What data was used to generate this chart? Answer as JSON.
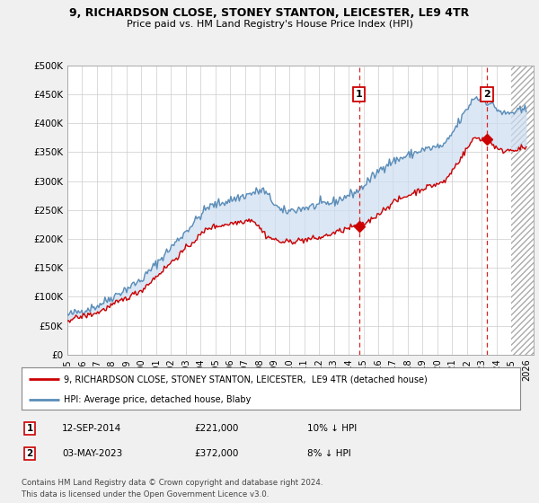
{
  "title_line1": "9, RICHARDSON CLOSE, STONEY STANTON, LEICESTER, LE9 4TR",
  "title_line2": "Price paid vs. HM Land Registry's House Price Index (HPI)",
  "ylim": [
    0,
    500000
  ],
  "yticks": [
    0,
    50000,
    100000,
    150000,
    200000,
    250000,
    300000,
    350000,
    400000,
    450000,
    500000
  ],
  "ytick_labels": [
    "£0",
    "£50K",
    "£100K",
    "£150K",
    "£200K",
    "£250K",
    "£300K",
    "£350K",
    "£400K",
    "£450K",
    "£500K"
  ],
  "xlim_start": 1995.0,
  "xlim_end": 2026.5,
  "xticks": [
    1995,
    1996,
    1997,
    1998,
    1999,
    2000,
    2001,
    2002,
    2003,
    2004,
    2005,
    2006,
    2007,
    2008,
    2009,
    2010,
    2011,
    2012,
    2013,
    2014,
    2015,
    2016,
    2017,
    2018,
    2019,
    2020,
    2021,
    2022,
    2023,
    2024,
    2025,
    2026
  ],
  "background_color": "#f0f0f0",
  "plot_bg_color": "#ffffff",
  "hpi_color": "#5b8db8",
  "hpi_fill_color": "#ccddf0",
  "price_color": "#cc0000",
  "vline1_x": 2014.708,
  "vline2_x": 2023.336,
  "marker1_x": 2014.708,
  "marker1_y": 221000,
  "marker2_x": 2023.336,
  "marker2_y": 372000,
  "legend_line1": "9, RICHARDSON CLOSE, STONEY STANTON, LEICESTER,  LE9 4TR (detached house)",
  "legend_line2": "HPI: Average price, detached house, Blaby",
  "note1_date": "12-SEP-2014",
  "note1_price": "£221,000",
  "note1_hpi": "10% ↓ HPI",
  "note2_date": "03-MAY-2023",
  "note2_price": "£372,000",
  "note2_hpi": "8% ↓ HPI",
  "footer": "Contains HM Land Registry data © Crown copyright and database right 2024.\nThis data is licensed under the Open Government Licence v3.0.",
  "hatch_start": 2025.0
}
